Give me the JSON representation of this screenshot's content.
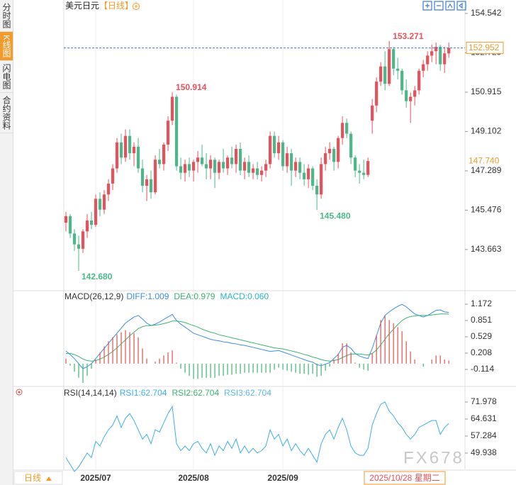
{
  "sidebar": {
    "tabs": [
      "分时图",
      "K线图",
      "闪电图",
      "合约资料"
    ]
  },
  "footer": {
    "period_button": "日线",
    "cursor_date": "2025/10/28 星期二"
  },
  "watermark": "FX678",
  "chart_data": [
    {
      "type": "candlestick",
      "title": "美元日元",
      "period": "【日线】",
      "up_color": "#e8505b",
      "down_color": "#4cb88a",
      "grid": true,
      "xlim": [
        -0.5,
        93.8
      ],
      "xticks": [
        {
          "value": 7,
          "label": "2025/07"
        },
        {
          "value": 30,
          "label": "2025/08"
        },
        {
          "value": 51,
          "label": "2025/09"
        }
      ],
      "ylim": [
        141.83,
        154.9
      ],
      "yticks": [
        154.542,
        152.729,
        150.915,
        149.102,
        147.289,
        145.476,
        143.663
      ],
      "last_price": {
        "value": 152.952,
        "label": "152.952"
      },
      "cursor_price": {
        "value": 147.74,
        "label": "147.740"
      },
      "high_labels": [
        153.271,
        150.914
      ],
      "low_labels": [
        {
          "value": 145.48,
          "label": "145.480"
        },
        {
          "value": 142.68,
          "label": "142.680"
        }
      ],
      "candles": [
        [
          144.9,
          145.4,
          144.5,
          145.2
        ],
        [
          145.2,
          145.3,
          144.2,
          144.4
        ],
        [
          144.4,
          144.6,
          143.6,
          143.9
        ],
        [
          143.9,
          144.3,
          142.68,
          143.7
        ],
        [
          143.7,
          144.6,
          143.5,
          144.5
        ],
        [
          144.5,
          145.3,
          144.2,
          145.0
        ],
        [
          145.0,
          145.4,
          144.6,
          144.8
        ],
        [
          144.8,
          146.2,
          144.7,
          146.0
        ],
        [
          146.0,
          146.3,
          145.2,
          145.5
        ],
        [
          145.5,
          146.4,
          145.3,
          146.2
        ],
        [
          146.2,
          146.9,
          145.9,
          146.7
        ],
        [
          146.7,
          147.6,
          146.4,
          147.4
        ],
        [
          147.4,
          148.8,
          147.2,
          148.6
        ],
        [
          148.6,
          149.0,
          147.6,
          147.9
        ],
        [
          147.9,
          149.2,
          147.7,
          148.9
        ],
        [
          148.9,
          149.2,
          147.8,
          148.1
        ],
        [
          148.1,
          148.6,
          147.5,
          148.4
        ],
        [
          148.4,
          148.8,
          147.2,
          147.4
        ],
        [
          147.4,
          147.8,
          146.3,
          146.6
        ],
        [
          146.6,
          147.1,
          145.9,
          146.9
        ],
        [
          146.9,
          147.3,
          146.0,
          146.3
        ],
        [
          146.3,
          148.0,
          146.2,
          147.8
        ],
        [
          147.8,
          148.3,
          147.4,
          147.6
        ],
        [
          147.6,
          148.6,
          147.3,
          148.5
        ],
        [
          148.5,
          149.8,
          148.2,
          149.6
        ],
        [
          149.6,
          150.914,
          149.4,
          150.7
        ],
        [
          150.7,
          150.8,
          147.3,
          147.5
        ],
        [
          147.5,
          147.9,
          146.9,
          147.2
        ],
        [
          147.2,
          147.8,
          146.8,
          147.6
        ],
        [
          147.6,
          147.9,
          147.0,
          147.3
        ],
        [
          147.3,
          147.8,
          146.8,
          147.7
        ],
        [
          147.7,
          148.2,
          147.2,
          147.9
        ],
        [
          147.9,
          148.5,
          147.5,
          147.6
        ],
        [
          147.6,
          148.1,
          146.9,
          147.4
        ],
        [
          147.4,
          148.0,
          146.9,
          147.8
        ],
        [
          147.8,
          147.9,
          146.5,
          147.2
        ],
        [
          147.2,
          147.8,
          146.9,
          147.7
        ],
        [
          147.7,
          148.3,
          147.2,
          147.4
        ],
        [
          147.4,
          148.0,
          147.1,
          147.9
        ],
        [
          147.9,
          148.4,
          147.4,
          147.6
        ],
        [
          147.6,
          148.5,
          147.2,
          148.3
        ],
        [
          148.3,
          148.6,
          147.1,
          147.3
        ],
        [
          147.3,
          147.9,
          146.9,
          147.7
        ],
        [
          147.7,
          148.0,
          147.0,
          147.2
        ],
        [
          147.2,
          147.6,
          146.9,
          147.4
        ],
        [
          147.4,
          147.7,
          146.9,
          147.1
        ],
        [
          147.1,
          147.5,
          146.8,
          147.3
        ],
        [
          147.3,
          147.8,
          147.0,
          147.6
        ],
        [
          147.6,
          149.1,
          147.4,
          148.9
        ],
        [
          148.9,
          149.1,
          147.9,
          148.1
        ],
        [
          148.1,
          148.9,
          147.8,
          148.6
        ],
        [
          148.6,
          148.7,
          147.3,
          147.5
        ],
        [
          147.5,
          148.4,
          147.2,
          148.1
        ],
        [
          148.1,
          148.3,
          146.6,
          147.3
        ],
        [
          147.3,
          147.9,
          147.0,
          147.7
        ],
        [
          147.7,
          147.9,
          146.9,
          147.2
        ],
        [
          147.2,
          147.6,
          146.6,
          146.9
        ],
        [
          146.9,
          147.6,
          146.5,
          147.4
        ],
        [
          147.4,
          147.5,
          146.4,
          146.6
        ],
        [
          146.6,
          146.9,
          145.48,
          146.2
        ],
        [
          146.2,
          147.9,
          146.0,
          147.6
        ],
        [
          147.6,
          148.4,
          147.3,
          148.1
        ],
        [
          148.1,
          148.6,
          147.8,
          148.3
        ],
        [
          148.3,
          148.4,
          147.3,
          147.7
        ],
        [
          147.7,
          148.9,
          147.4,
          148.8
        ],
        [
          148.8,
          149.8,
          148.5,
          149.5
        ],
        [
          149.5,
          149.7,
          148.8,
          149.0
        ],
        [
          149.0,
          149.1,
          147.6,
          147.9
        ],
        [
          147.9,
          148.0,
          147.0,
          147.3
        ],
        [
          147.3,
          147.6,
          146.7,
          147.2
        ],
        [
          147.2,
          147.8,
          146.9,
          147.1
        ],
        [
          147.1,
          147.9,
          147.0,
          147.74
        ],
        [
          149.6,
          150.6,
          149.0,
          150.3
        ],
        [
          150.3,
          151.6,
          150.0,
          151.4
        ],
        [
          151.4,
          152.3,
          151.2,
          152.1
        ],
        [
          152.1,
          152.8,
          151.0,
          151.3
        ],
        [
          151.3,
          153.271,
          151.2,
          152.9
        ],
        [
          152.9,
          153.0,
          151.7,
          152.0
        ],
        [
          152.0,
          152.5,
          151.5,
          151.9
        ],
        [
          151.9,
          152.0,
          150.8,
          151.0
        ],
        [
          151.0,
          151.5,
          150.2,
          150.5
        ],
        [
          150.5,
          150.9,
          149.5,
          150.7
        ],
        [
          150.7,
          151.2,
          150.3,
          151.0
        ],
        [
          151.0,
          152.0,
          150.8,
          151.9
        ],
        [
          151.9,
          152.4,
          151.6,
          152.2
        ],
        [
          152.2,
          152.8,
          151.9,
          152.6
        ],
        [
          152.6,
          153.1,
          152.3,
          152.8
        ],
        [
          152.8,
          153.2,
          152.2,
          153.0
        ],
        [
          153.0,
          153.1,
          151.9,
          152.2
        ],
        [
          152.2,
          153.0,
          151.8,
          152.7
        ],
        [
          152.7,
          153.2,
          152.5,
          152.952
        ]
      ]
    },
    {
      "type": "macd",
      "title": "MACD(26,12,9)",
      "ylim": [
        -0.408,
        1.41
      ],
      "yticks": [
        1.172,
        0.851,
        0.529,
        0.208,
        -0.114
      ],
      "series": [
        {
          "name": "DIFF:1.009",
          "color": "#3a8ee6",
          "values": [
            0.25,
            0.18,
            0.1,
            0.0,
            -0.1,
            -0.06,
            0.0,
            0.1,
            0.2,
            0.3,
            0.4,
            0.5,
            0.6,
            0.7,
            0.8,
            0.86,
            0.92,
            0.95,
            0.88,
            0.8,
            0.75,
            0.78,
            0.82,
            0.87,
            0.92,
            0.97,
            0.85,
            0.78,
            0.72,
            0.66,
            0.6,
            0.57,
            0.54,
            0.51,
            0.48,
            0.46,
            0.45,
            0.43,
            0.42,
            0.4,
            0.39,
            0.37,
            0.36,
            0.34,
            0.32,
            0.3,
            0.28,
            0.26,
            0.24,
            0.25,
            0.26,
            0.23,
            0.2,
            0.17,
            0.14,
            0.11,
            0.08,
            0.05,
            0.03,
            -0.02,
            -0.04,
            -0.01,
            0.02,
            0.1,
            0.18,
            0.32,
            0.36,
            0.3,
            0.2,
            0.15,
            0.12,
            0.1,
            0.3,
            0.55,
            0.8,
            0.95,
            1.02,
            1.08,
            1.13,
            1.17,
            1.12,
            1.05,
            0.98,
            0.95,
            0.92,
            0.95,
            1.0,
            1.05,
            1.06,
            1.02,
            1.009
          ]
        },
        {
          "name": "DEA:0.979",
          "color": "#3cb371",
          "values": [
            0.2,
            0.2,
            0.18,
            0.14,
            0.09,
            0.06,
            0.05,
            0.06,
            0.09,
            0.13,
            0.18,
            0.24,
            0.31,
            0.39,
            0.47,
            0.55,
            0.62,
            0.69,
            0.73,
            0.75,
            0.75,
            0.76,
            0.77,
            0.79,
            0.81,
            0.84,
            0.84,
            0.83,
            0.81,
            0.78,
            0.75,
            0.72,
            0.68,
            0.65,
            0.62,
            0.6,
            0.57,
            0.55,
            0.53,
            0.51,
            0.49,
            0.47,
            0.45,
            0.43,
            0.41,
            0.39,
            0.37,
            0.35,
            0.33,
            0.31,
            0.3,
            0.29,
            0.27,
            0.25,
            0.23,
            0.21,
            0.18,
            0.16,
            0.13,
            0.11,
            0.08,
            0.06,
            0.05,
            0.06,
            0.08,
            0.12,
            0.16,
            0.19,
            0.19,
            0.19,
            0.18,
            0.17,
            0.2,
            0.27,
            0.37,
            0.48,
            0.59,
            0.68,
            0.77,
            0.85,
            0.9,
            0.93,
            0.94,
            0.95,
            0.95,
            0.95,
            0.96,
            0.97,
            0.98,
            0.98,
            0.979
          ]
        },
        {
          "name": "MACD:0.060",
          "color": "#2bb5c8",
          "bars": true,
          "up_color": "#d9534f",
          "down_color": "#3cb371",
          "values": [
            0.1,
            -0.04,
            -0.16,
            -0.28,
            -0.38,
            -0.24,
            -0.1,
            0.08,
            0.22,
            0.34,
            0.44,
            0.52,
            0.58,
            0.62,
            0.66,
            0.62,
            0.6,
            0.52,
            0.3,
            0.1,
            0,
            0.04,
            0.1,
            0.16,
            0.22,
            0.26,
            0.02,
            -0.1,
            -0.18,
            -0.24,
            -0.3,
            -0.3,
            -0.28,
            -0.28,
            -0.28,
            -0.28,
            -0.24,
            -0.24,
            -0.22,
            -0.22,
            -0.2,
            -0.2,
            -0.18,
            -0.18,
            -0.18,
            -0.18,
            -0.18,
            -0.18,
            -0.18,
            -0.12,
            -0.08,
            -0.12,
            -0.14,
            -0.16,
            -0.18,
            -0.2,
            -0.2,
            -0.22,
            -0.2,
            -0.26,
            -0.24,
            -0.14,
            -0.06,
            0.08,
            0.2,
            0.4,
            0.4,
            0.22,
            0.02,
            -0.08,
            -0.12,
            -0.14,
            0.2,
            0.56,
            0.86,
            0.94,
            0.86,
            0.8,
            0.72,
            0.64,
            0.44,
            0.24,
            0.08,
            0,
            -0.06,
            0,
            0.08,
            0.16,
            0.16,
            0.08,
            0.06
          ]
        }
      ]
    },
    {
      "type": "rsi",
      "title": "RSI(14,14,14)",
      "ylim": [
        42.9,
        77.79
      ],
      "yticks": [
        71.978,
        64.631,
        57.284,
        49.938
      ],
      "series": [
        {
          "name": "RSI1:62.704",
          "color": "#3cb0e8",
          "values": [
            48,
            45,
            42,
            44,
            47,
            50,
            48,
            55,
            53,
            57,
            60,
            62,
            66,
            61,
            65,
            67,
            64,
            60,
            56,
            58,
            54,
            60,
            59,
            63,
            67,
            70,
            54,
            51,
            53,
            51,
            54,
            55,
            52,
            50,
            54,
            49,
            53,
            51,
            55,
            52,
            56,
            50,
            53,
            50,
            52,
            50,
            51,
            53,
            60,
            56,
            58,
            53,
            56,
            51,
            54,
            51,
            49,
            52,
            49,
            46,
            54,
            58,
            60,
            56,
            61,
            65,
            60,
            53,
            50,
            49,
            49,
            52,
            62,
            67,
            71,
            72,
            68,
            66,
            63,
            61,
            58,
            56,
            58,
            61,
            62,
            63,
            64,
            64,
            58,
            61,
            62.704
          ]
        },
        {
          "name": "RSI2:62.704",
          "color": "#3cb371"
        },
        {
          "name": "RSI3:62.704",
          "color": "#5bb8e6"
        }
      ]
    }
  ]
}
